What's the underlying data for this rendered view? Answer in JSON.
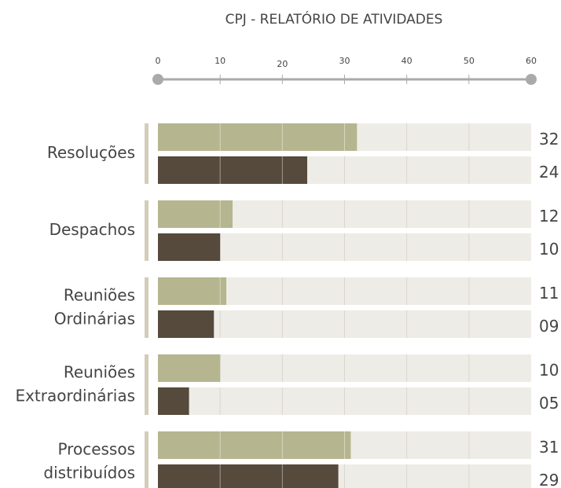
{
  "chart_data": {
    "type": "bar",
    "orientation": "horizontal",
    "title": "CPJ - RELATÓRIO DE ATIVIDADES",
    "categories": [
      "Resoluções",
      "Despachos",
      "Reuniões Ordinárias",
      "Reuniões Extraordinárias",
      "Processos distribuídos"
    ],
    "series": [
      {
        "color": "#b5b58f",
        "values": [
          32,
          12,
          11,
          10,
          31
        ]
      },
      {
        "color": "#554a3c",
        "values": [
          24,
          10,
          9,
          5,
          29
        ],
        "value_labels": [
          "24",
          "10",
          "09",
          "05",
          "29"
        ]
      }
    ],
    "xlim": [
      0,
      60
    ],
    "xticks": [
      0,
      10,
      20,
      30,
      40,
      50,
      60
    ],
    "grid": true
  }
}
